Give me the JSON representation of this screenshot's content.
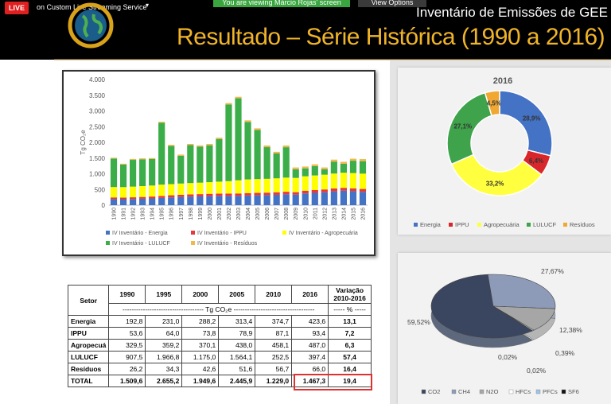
{
  "toolbar": {
    "live": "LIVE",
    "service": "on Custom Live Streaming Service",
    "banner": "You are viewing Márcio Rojas' screen",
    "view_options": "View Options"
  },
  "slide": {
    "header": "Inventário de Emissões de GEE",
    "title": "Resultado – Série Histórica (1990 a 2016)"
  },
  "chart_data": [
    {
      "type": "bar",
      "stacked": true,
      "ylabel": "Tg CO₂e",
      "categories": [
        "1990",
        "1991",
        "1992",
        "1993",
        "1994",
        "1995",
        "1996",
        "1997",
        "1998",
        "1999",
        "2000",
        "2001",
        "2002",
        "2003",
        "2004",
        "2005",
        "2006",
        "2007",
        "2008",
        "2009",
        "2010",
        "2011",
        "2012",
        "2013",
        "2014",
        "2015",
        "2016"
      ],
      "ylim": [
        0,
        4000
      ],
      "yticks": [
        0,
        500,
        {
          "value": 1000,
          "label": "1.000"
        },
        {
          "value": 1500,
          "label": "1.500"
        },
        {
          "value": 2000,
          "label": "2.000"
        },
        {
          "value": 2500,
          "label": "2.500"
        },
        {
          "value": 3000,
          "label": "3.000"
        },
        {
          "value": 3500,
          "label": "3.500"
        },
        {
          "value": 4000,
          "label": "4.000"
        }
      ],
      "grid": false,
      "series": [
        {
          "name": "IV Inventário - Energia",
          "color": "#4472c4",
          "values": [
            193,
            190,
            196,
            204,
            215,
            231,
            248,
            262,
            272,
            280,
            288,
            295,
            294,
            296,
            307,
            313,
            320,
            330,
            345,
            336,
            375,
            392,
            410,
            440,
            460,
            445,
            424
          ]
        },
        {
          "name": "IV Inventário - IPPU",
          "color": "#e8383d",
          "values": [
            54,
            52,
            55,
            58,
            61,
            64,
            67,
            70,
            72,
            72,
            74,
            74,
            76,
            77,
            78,
            79,
            80,
            82,
            83,
            78,
            87,
            90,
            91,
            92,
            93,
            92,
            93
          ]
        },
        {
          "name": "IV Inventário - Agropecuária",
          "color": "#ffff00",
          "values": [
            330,
            333,
            340,
            345,
            350,
            359,
            355,
            357,
            360,
            365,
            370,
            380,
            395,
            420,
            435,
            438,
            440,
            443,
            450,
            455,
            458,
            465,
            470,
            475,
            480,
            485,
            487
          ]
        },
        {
          "name": "IV Inventário - LULUCF",
          "color": "#3cae49",
          "values": [
            907,
            718,
            851,
            854,
            843,
            1967,
            1215,
            884,
            1208,
            1143,
            1175,
            1357,
            2440,
            2610,
            1830,
            1564,
            1007,
            791,
            967,
            275,
            253,
            294,
            169,
            381,
            284,
            393,
            397
          ]
        },
        {
          "name": "IV Inventário - Resíduos",
          "color": "#f2b84b",
          "values": [
            26,
            27,
            28,
            29,
            31,
            34,
            35,
            37,
            38,
            40,
            43,
            44,
            45,
            47,
            50,
            52,
            53,
            54,
            55,
            56,
            57,
            59,
            60,
            62,
            63,
            65,
            66
          ]
        }
      ]
    },
    {
      "type": "donut",
      "title": "2016",
      "categories": [
        "Energia",
        "IPPU",
        "Agropecuária",
        "LULUCF",
        "Resíduos"
      ],
      "values": [
        28.9,
        6.4,
        33.2,
        27.1,
        4.5
      ],
      "value_labels": [
        "28,9%",
        "6,4%",
        "33,2%",
        "27,1%",
        "4,5%"
      ],
      "colors": [
        "#4472c4",
        "#d9262b",
        "#ffff40",
        "#3ea34a",
        "#f0a832"
      ]
    },
    {
      "type": "pie",
      "three_d": true,
      "categories": [
        "CO2",
        "CH4",
        "N2O",
        "HFCs",
        "PFCs",
        "SF6"
      ],
      "values": [
        59.52,
        27.67,
        12.38,
        0.39,
        0.02,
        0.02
      ],
      "value_labels": [
        "59,52%",
        "27,67%",
        "12,38%",
        "0,39%",
        "0,02%",
        "0,02%"
      ],
      "colors": [
        "#3a4660",
        "#8d9bb8",
        "#a6a6a6",
        "#ffffff",
        "#9dc3e6",
        "#111111"
      ]
    }
  ],
  "table": {
    "header": [
      "Setor",
      "1990",
      "1995",
      "2000",
      "2005",
      "2010",
      "2016",
      "Variação\n2010-2016"
    ],
    "units": [
      "------------------------------------ Tg CO₂e ------------------------------------",
      "----- % -----"
    ],
    "rows": [
      [
        "Energia",
        "192,8",
        "231,0",
        "288,2",
        "313,4",
        "374,7",
        "423,6",
        "13,1"
      ],
      [
        "IPPU",
        "53,6",
        "64,0",
        "73,8",
        "78,9",
        "87,1",
        "93,4",
        "7,2"
      ],
      [
        "Agropecuá",
        "329,5",
        "359,2",
        "370,1",
        "438,0",
        "458,1",
        "487,0",
        "6,3"
      ],
      [
        "LULUCF",
        "907,5",
        "1.966,8",
        "1.175,0",
        "1.564,1",
        "252,5",
        "397,4",
        "57,4"
      ],
      [
        "Resíduos",
        "26,2",
        "34,3",
        "42,6",
        "51,6",
        "56,7",
        "66,0",
        "16,4"
      ],
      [
        "TOTAL",
        "1.509,6",
        "2.655,2",
        "1.949,6",
        "2.445,9",
        "1.229,0",
        "1.467,3",
        "19,4"
      ]
    ]
  }
}
